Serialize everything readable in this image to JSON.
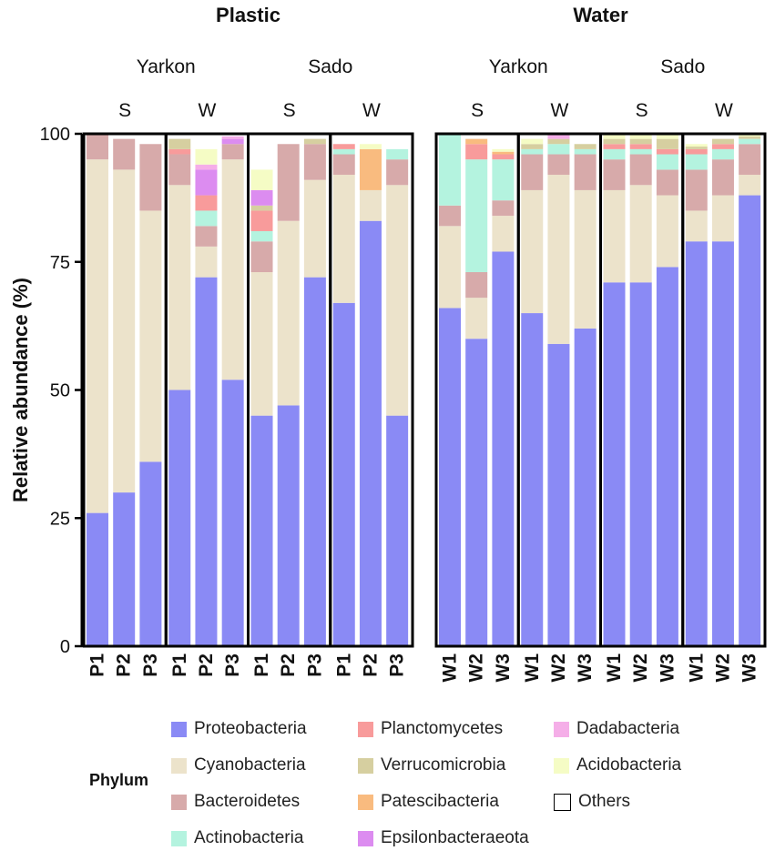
{
  "chart_data": {
    "type": "bar",
    "stacked": true,
    "ylabel": "Relative abundance (%)",
    "ylim": [
      0,
      100
    ],
    "yticks": [
      0,
      25,
      50,
      75,
      100
    ],
    "panels": [
      {
        "title": "Plastic",
        "locations": [
          {
            "name": "Yarkon",
            "seasons": [
              "S",
              "W"
            ]
          },
          {
            "name": "Sado",
            "seasons": [
              "S",
              "W"
            ]
          }
        ]
      },
      {
        "title": "Water",
        "locations": [
          {
            "name": "Yarkon",
            "seasons": [
              "S",
              "W"
            ]
          },
          {
            "name": "Sado",
            "seasons": [
              "S",
              "W"
            ]
          }
        ]
      }
    ],
    "phyla": [
      {
        "name": "Proteobacteria",
        "color": "#8a8af5"
      },
      {
        "name": "Cyanobacteria",
        "color": "#ece3cb"
      },
      {
        "name": "Bacteroidetes",
        "color": "#d7aaaa"
      },
      {
        "name": "Actinobacteria",
        "color": "#b4f3df"
      },
      {
        "name": "Planctomycetes",
        "color": "#f89b9b"
      },
      {
        "name": "Verrucomicrobia",
        "color": "#d6cfa0"
      },
      {
        "name": "Patescibacteria",
        "color": "#f9bb7f"
      },
      {
        "name": "Epsilonbacteraeota",
        "color": "#dc8cf0"
      },
      {
        "name": "Dadabacteria",
        "color": "#f5aee8"
      },
      {
        "name": "Acidobacteria",
        "color": "#f5fcc5"
      },
      {
        "name": "Others",
        "color": "#ffffff"
      }
    ],
    "groups": [
      {
        "panel": "Plastic",
        "location": "Yarkon",
        "season": "S",
        "samples": [
          {
            "label": "P1",
            "values": [
              26,
              69,
              5,
              0,
              0,
              0,
              0,
              0,
              0,
              0,
              0
            ]
          },
          {
            "label": "P2",
            "values": [
              30,
              63,
              6,
              0,
              0,
              0,
              0,
              0,
              0,
              0,
              0
            ]
          },
          {
            "label": "P3",
            "values": [
              36,
              49,
              13,
              0,
              0,
              0,
              0,
              0,
              0,
              0,
              0
            ]
          }
        ]
      },
      {
        "panel": "Plastic",
        "location": "Yarkon",
        "season": "W",
        "samples": [
          {
            "label": "P1",
            "values": [
              50,
              40,
              6,
              0,
              1,
              2,
              0,
              0,
              0,
              0,
              0
            ]
          },
          {
            "label": "P2",
            "values": [
              72,
              6,
              4,
              3,
              3,
              0,
              0,
              5,
              1,
              3,
              0
            ]
          },
          {
            "label": "P3",
            "values": [
              52,
              43,
              3,
              0,
              0,
              0,
              0,
              1,
              0.5,
              0,
              0
            ]
          }
        ]
      },
      {
        "panel": "Plastic",
        "location": "Sado",
        "season": "S",
        "samples": [
          {
            "label": "P1",
            "values": [
              45,
              28,
              6,
              2,
              4,
              1,
              0,
              3,
              0,
              4,
              0
            ]
          },
          {
            "label": "P2",
            "values": [
              47,
              36,
              15,
              0,
              0,
              0,
              0,
              0,
              0,
              0,
              0
            ]
          },
          {
            "label": "P3",
            "values": [
              72,
              19,
              7,
              0,
              0,
              1,
              0,
              0,
              0,
              0,
              0
            ]
          }
        ]
      },
      {
        "panel": "Plastic",
        "location": "Sado",
        "season": "W",
        "samples": [
          {
            "label": "P1",
            "values": [
              67,
              25,
              4,
              1,
              1,
              0,
              0,
              0,
              0,
              0,
              0
            ]
          },
          {
            "label": "P2",
            "values": [
              83,
              6,
              0,
              0,
              0,
              0,
              8,
              0,
              0,
              1,
              0
            ]
          },
          {
            "label": "P3",
            "values": [
              45,
              45,
              5,
              2,
              0,
              0,
              0,
              0,
              0,
              0,
              0
            ]
          }
        ]
      },
      {
        "panel": "Water",
        "location": "Yarkon",
        "season": "S",
        "samples": [
          {
            "label": "W1",
            "values": [
              66,
              16,
              4,
              14,
              0,
              0,
              0,
              0,
              0,
              0,
              0
            ]
          },
          {
            "label": "W2",
            "values": [
              60,
              8,
              5,
              22,
              3,
              0,
              1,
              0,
              0,
              0,
              0
            ]
          },
          {
            "label": "W3",
            "values": [
              77,
              7,
              3,
              8,
              1,
              0,
              0.5,
              0,
              0,
              0.5,
              0
            ]
          }
        ]
      },
      {
        "panel": "Water",
        "location": "Yarkon",
        "season": "W",
        "samples": [
          {
            "label": "W1",
            "values": [
              65,
              24,
              7,
              1,
              0,
              1,
              0,
              0,
              0,
              1,
              0
            ]
          },
          {
            "label": "W2",
            "values": [
              59,
              33,
              4,
              2,
              0,
              1,
              0,
              0,
              1,
              0,
              0
            ]
          },
          {
            "label": "W3",
            "values": [
              62,
              27,
              7,
              1,
              0,
              1,
              0,
              0,
              0,
              0,
              0
            ]
          }
        ]
      },
      {
        "panel": "Water",
        "location": "Sado",
        "season": "S",
        "samples": [
          {
            "label": "W1",
            "values": [
              71,
              18,
              6,
              2,
              1,
              1,
              0,
              0,
              0,
              1,
              0
            ]
          },
          {
            "label": "W2",
            "values": [
              71,
              19,
              6,
              1,
              1,
              1,
              0,
              0,
              0,
              1,
              0
            ]
          },
          {
            "label": "W3",
            "values": [
              74,
              14,
              5,
              3,
              1,
              2,
              0,
              0,
              0,
              1,
              0
            ]
          }
        ]
      },
      {
        "panel": "Water",
        "location": "Sado",
        "season": "W",
        "samples": [
          {
            "label": "W1",
            "values": [
              79,
              6,
              8,
              3,
              1,
              0.5,
              0,
              0,
              0,
              0.5,
              0
            ]
          },
          {
            "label": "W2",
            "values": [
              79,
              9,
              7,
              2,
              1,
              1,
              0,
              0,
              0,
              0,
              0
            ]
          },
          {
            "label": "W3",
            "values": [
              88,
              4,
              6,
              1,
              0,
              0.5,
              0,
              0,
              0,
              0.5,
              0
            ]
          }
        ]
      }
    ]
  },
  "legend": {
    "title": "Phylum",
    "items": [
      "Proteobacteria",
      "Planctomycetes",
      "Dadabacteria",
      "Cyanobacteria",
      "Verrucomicrobia",
      "Acidobacteria",
      "Bacteroidetes",
      "Patescibacteria",
      "Others",
      "Actinobacteria",
      "Epsilonbacteraeota"
    ]
  }
}
